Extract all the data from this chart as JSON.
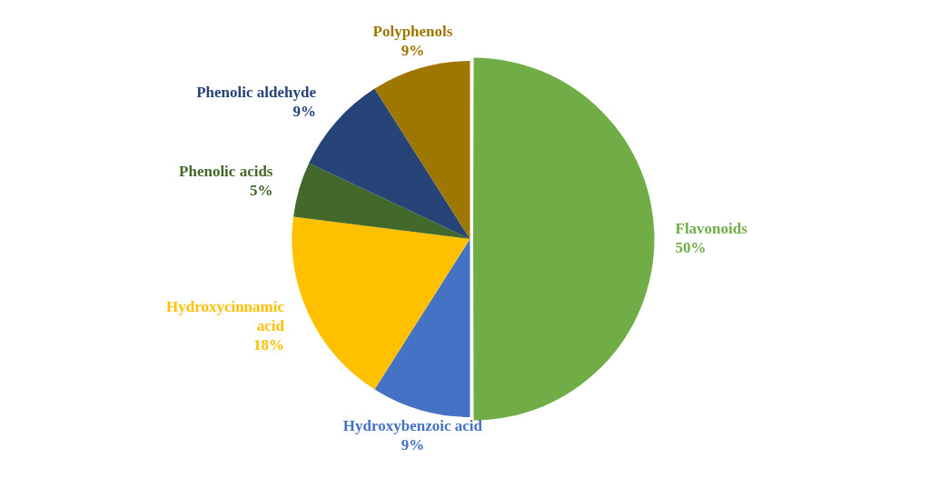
{
  "chart_data": {
    "type": "pie",
    "categories": [
      "Flavonoids",
      "Hydroxybenzoic acid",
      "Hydroxycinnamic acid",
      "Phenolic acids",
      "Phenolic aldehyde",
      "Polyphenols"
    ],
    "values": [
      50,
      9,
      18,
      5,
      9,
      9
    ],
    "colors": [
      "#70ad47",
      "#4472c4",
      "#ffc000",
      "#43682b",
      "#264478",
      "#9e7700"
    ],
    "value_labels": [
      "50%",
      "9%",
      "18%",
      "5%",
      "9%",
      "9%"
    ],
    "legend": false
  }
}
